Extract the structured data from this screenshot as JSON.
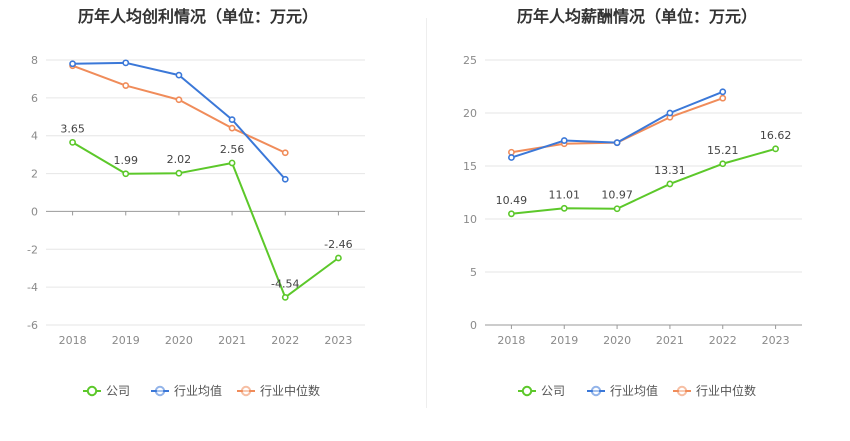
{
  "chart_data": [
    {
      "type": "line",
      "title": "历年人均创利情况（单位：万元）",
      "categories": [
        "2018",
        "2019",
        "2020",
        "2021",
        "2022",
        "2023"
      ],
      "ylim": [
        -6,
        8
      ],
      "yticks": [
        -6,
        -4,
        -2,
        0,
        2,
        4,
        6,
        8
      ],
      "grid": true,
      "legend_position": "bottom",
      "series": [
        {
          "name": "公司",
          "color": "#5cc82a",
          "values": [
            3.65,
            1.99,
            2.02,
            2.56,
            -4.54,
            -2.46
          ],
          "labels": [
            "3.65",
            "1.99",
            "2.02",
            "2.56",
            "-4.54",
            "-2.46"
          ]
        },
        {
          "name": "行业均值",
          "color": "#3b78d8",
          "values": [
            7.8,
            7.85,
            7.2,
            4.85,
            1.7,
            null
          ]
        },
        {
          "name": "行业中位数",
          "color": "#f08c5a",
          "values": [
            7.7,
            6.65,
            5.9,
            4.4,
            3.1,
            null
          ]
        }
      ]
    },
    {
      "type": "line",
      "title": "历年人均薪酬情况（单位：万元）",
      "categories": [
        "2018",
        "2019",
        "2020",
        "2021",
        "2022",
        "2023"
      ],
      "ylim": [
        0,
        25
      ],
      "yticks": [
        0,
        5,
        10,
        15,
        20,
        25
      ],
      "grid": true,
      "legend_position": "bottom",
      "series": [
        {
          "name": "公司",
          "color": "#5cc82a",
          "values": [
            10.49,
            11.01,
            10.97,
            13.31,
            15.21,
            16.62
          ],
          "labels": [
            "10.49",
            "11.01",
            "10.97",
            "13.31",
            "15.21",
            "16.62"
          ]
        },
        {
          "name": "行业均值",
          "color": "#3b78d8",
          "values": [
            15.8,
            17.4,
            17.2,
            20.0,
            22.0,
            null
          ]
        },
        {
          "name": "行业中位数",
          "color": "#f08c5a",
          "values": [
            16.3,
            17.1,
            17.2,
            19.6,
            21.4,
            null
          ]
        }
      ]
    }
  ]
}
